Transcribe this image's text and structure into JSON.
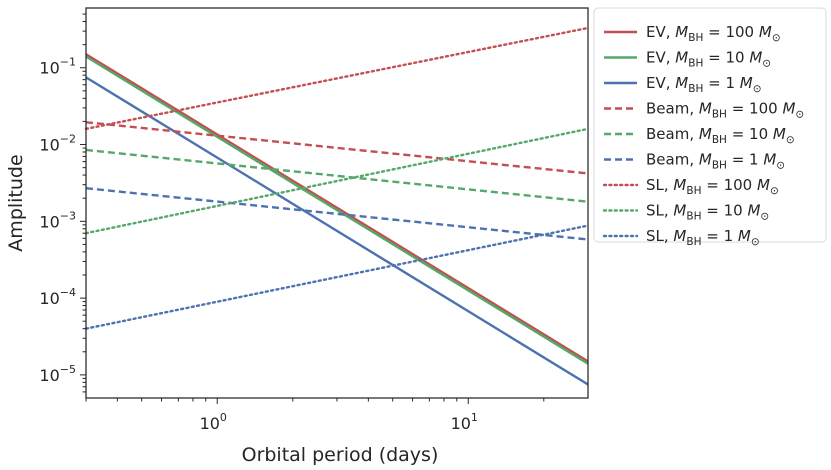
{
  "chart_data": {
    "type": "line",
    "xlabel": "Orbital period (days)",
    "ylabel": "Amplitude",
    "xscale": "log",
    "yscale": "log",
    "xlim": [
      0.3,
      30
    ],
    "ylim": [
      5e-06,
      0.6
    ],
    "grid": false,
    "legend_position": "outside right",
    "x_ticks": [
      {
        "value": 1,
        "label": "10^0",
        "base": "10",
        "exp": "0"
      },
      {
        "value": 10,
        "label": "10^1",
        "base": "10",
        "exp": "1"
      }
    ],
    "y_ticks": [
      {
        "value": 1e-05,
        "label": "10^-5",
        "base": "10",
        "exp": "−5"
      },
      {
        "value": 0.0001,
        "label": "10^-4",
        "base": "10",
        "exp": "−4"
      },
      {
        "value": 0.001,
        "label": "10^-3",
        "base": "10",
        "exp": "−3"
      },
      {
        "value": 0.01,
        "label": "10^-2",
        "base": "10",
        "exp": "−2"
      },
      {
        "value": 0.1,
        "label": "10^-1",
        "base": "10",
        "exp": "−1"
      }
    ],
    "series": [
      {
        "name": "EV, M_BH = 100 M_⊙",
        "prefix": "EV, ",
        "mass": "100",
        "color": "#c44e52",
        "style": "solid",
        "x": [
          0.3,
          30
        ],
        "y": [
          0.15,
          1.5e-05
        ]
      },
      {
        "name": "EV, M_BH = 10 M_⊙",
        "prefix": "EV, ",
        "mass": "10",
        "color": "#55a868",
        "style": "solid",
        "x": [
          0.3,
          30
        ],
        "y": [
          0.14,
          1.4e-05
        ]
      },
      {
        "name": "EV, M_BH = 1 M_⊙",
        "prefix": "EV, ",
        "mass": "1",
        "color": "#4c72b0",
        "style": "solid",
        "x": [
          0.3,
          30
        ],
        "y": [
          0.075,
          7.5e-06
        ]
      },
      {
        "name": "Beam, M_BH = 100 M_⊙",
        "prefix": "Beam, ",
        "mass": "100",
        "color": "#c44e52",
        "style": "dashed",
        "x": [
          0.3,
          30
        ],
        "y": [
          0.0195,
          0.0042
        ]
      },
      {
        "name": "Beam, M_BH = 10 M_⊙",
        "prefix": "Beam, ",
        "mass": "10",
        "color": "#55a868",
        "style": "dashed",
        "x": [
          0.3,
          30
        ],
        "y": [
          0.0085,
          0.0018
        ]
      },
      {
        "name": "Beam, M_BH = 1 M_⊙",
        "prefix": "Beam, ",
        "mass": "1",
        "color": "#4c72b0",
        "style": "dashed",
        "x": [
          0.3,
          30
        ],
        "y": [
          0.0027,
          0.00058
        ]
      },
      {
        "name": "SL, M_BH = 100 M_⊙",
        "prefix": "SL, ",
        "mass": "100",
        "color": "#c44e52",
        "style": "dotted",
        "x": [
          0.3,
          30
        ],
        "y": [
          0.016,
          0.33
        ]
      },
      {
        "name": "SL, M_BH = 10 M_⊙",
        "prefix": "SL, ",
        "mass": "10",
        "color": "#55a868",
        "style": "dotted",
        "x": [
          0.3,
          30
        ],
        "y": [
          0.0007,
          0.016
        ]
      },
      {
        "name": "SL, M_BH = 1 M_⊙",
        "prefix": "SL, ",
        "mass": "1",
        "color": "#4c72b0",
        "style": "dotted",
        "x": [
          0.3,
          30
        ],
        "y": [
          4e-05,
          0.00088
        ]
      }
    ]
  }
}
